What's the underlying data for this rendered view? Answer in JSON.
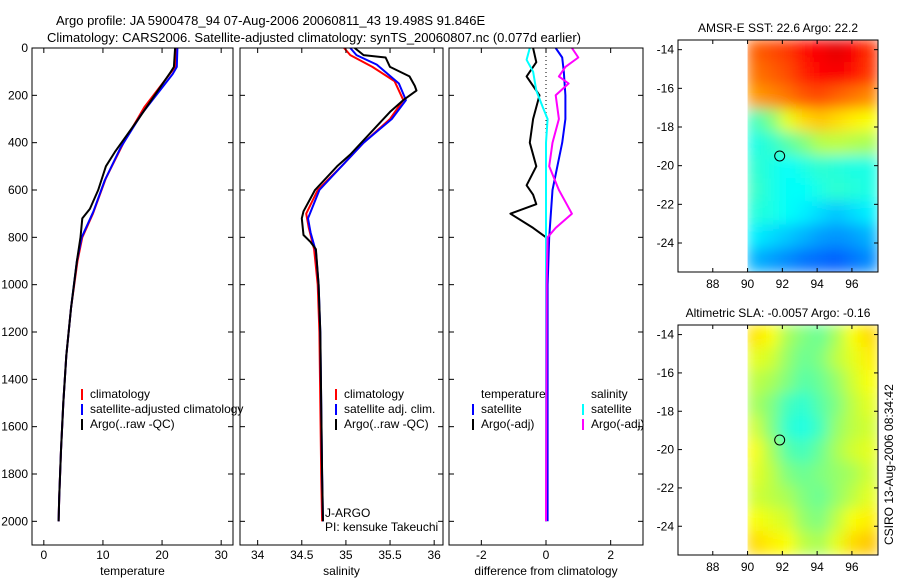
{
  "header": {
    "line1": "Argo profile: JA 5900478_94 07-Aug-2006 20060811_43 19.498S 91.846E",
    "line2": "Climatology: CARS2006. Satellite-adjusted climatology: synTS_20060807.nc (0.077d earlier)"
  },
  "credit": "CSIRO 13-Aug-2006 08:34:42",
  "colors": {
    "red": "#ff0000",
    "blue": "#0000ff",
    "black": "#000000",
    "cyan": "#00ffff",
    "magenta": "#ff00ff"
  },
  "chart_data": [
    {
      "id": "temperature",
      "type": "line",
      "xlabel": "temperature",
      "ylabel": "",
      "xlim": [
        -2,
        32
      ],
      "ylim": [
        2100,
        0
      ],
      "xticks": [
        0,
        10,
        20,
        30
      ],
      "yticks": [
        0,
        200,
        400,
        600,
        800,
        1000,
        1200,
        1400,
        1600,
        1800,
        2000
      ],
      "legend": [
        {
          "label": "climatology",
          "color": "#ff0000"
        },
        {
          "label": "satellite-adjusted climatology",
          "color": "#0000ff"
        },
        {
          "label": "Argo(..raw -QC)",
          "color": "#000000"
        }
      ],
      "series": [
        {
          "name": "climatology",
          "color": "#ff0000",
          "points": [
            [
              22.4,
              0
            ],
            [
              22.2,
              80
            ],
            [
              21.6,
              100
            ],
            [
              17,
              250
            ],
            [
              13.5,
              400
            ],
            [
              10.5,
              550
            ],
            [
              8.3,
              700
            ],
            [
              6.5,
              800
            ],
            [
              5.7,
              900
            ],
            [
              4.6,
              1100
            ],
            [
              3.8,
              1300
            ],
            [
              3.3,
              1500
            ],
            [
              2.9,
              1700
            ],
            [
              2.6,
              1900
            ],
            [
              2.5,
              2000
            ]
          ]
        },
        {
          "name": "satellite-adjusted climatology",
          "color": "#0000ff",
          "points": [
            [
              22.6,
              0
            ],
            [
              22.5,
              80
            ],
            [
              21.8,
              110
            ],
            [
              16.5,
              280
            ],
            [
              13,
              420
            ],
            [
              10.3,
              560
            ],
            [
              8.4,
              690
            ],
            [
              6.4,
              800
            ],
            [
              5.6,
              900
            ],
            [
              4.6,
              1100
            ],
            [
              3.8,
              1300
            ],
            [
              3.3,
              1500
            ],
            [
              2.9,
              1700
            ],
            [
              2.6,
              1900
            ],
            [
              2.5,
              2000
            ]
          ]
        },
        {
          "name": "Argo(..raw -QC)",
          "color": "#000000",
          "points": [
            [
              22.2,
              0
            ],
            [
              22,
              80
            ],
            [
              21.5,
              100
            ],
            [
              16,
              300
            ],
            [
              12,
              440
            ],
            [
              10.5,
              500
            ],
            [
              9.2,
              600
            ],
            [
              7.8,
              680
            ],
            [
              6.5,
              720
            ],
            [
              6.2,
              800
            ],
            [
              5.6,
              900
            ],
            [
              4.6,
              1100
            ],
            [
              3.8,
              1300
            ],
            [
              3.3,
              1500
            ],
            [
              2.9,
              1700
            ],
            [
              2.6,
              1900
            ],
            [
              2.5,
              2000
            ]
          ]
        }
      ]
    },
    {
      "id": "salinity",
      "type": "line",
      "xlabel": "salinity",
      "ylabel": "",
      "xlim": [
        33.8,
        36.1
      ],
      "ylim": [
        2100,
        0
      ],
      "xticks": [
        34,
        34.5,
        35,
        35.5,
        36
      ],
      "yticks": [],
      "legend": [
        {
          "label": "climatology",
          "color": "#ff0000"
        },
        {
          "label": "satellite adj. clim.",
          "color": "#0000ff"
        },
        {
          "label": "Argo(..raw -QC)",
          "color": "#000000"
        }
      ],
      "annotations": [
        "J-ARGO",
        "PI: kensuke Takeuchi"
      ],
      "series": [
        {
          "name": "climatology",
          "color": "#ff0000",
          "points": [
            [
              34.98,
              0
            ],
            [
              35.05,
              30
            ],
            [
              35.3,
              80
            ],
            [
              35.55,
              140
            ],
            [
              35.65,
              220
            ],
            [
              35.5,
              300
            ],
            [
              35.2,
              400
            ],
            [
              34.95,
              500
            ],
            [
              34.68,
              600
            ],
            [
              34.55,
              700
            ],
            [
              34.58,
              760
            ],
            [
              34.64,
              850
            ],
            [
              34.68,
              1000
            ],
            [
              34.7,
              1200
            ],
            [
              34.71,
              1500
            ],
            [
              34.72,
              1800
            ],
            [
              34.73,
              2000
            ]
          ]
        },
        {
          "name": "satellite adj. clim.",
          "color": "#0000ff",
          "points": [
            [
              35.05,
              0
            ],
            [
              35.12,
              30
            ],
            [
              35.35,
              70
            ],
            [
              35.6,
              150
            ],
            [
              35.68,
              220
            ],
            [
              35.52,
              300
            ],
            [
              35.2,
              400
            ],
            [
              34.95,
              500
            ],
            [
              34.7,
              600
            ],
            [
              34.57,
              720
            ],
            [
              34.6,
              780
            ],
            [
              34.66,
              860
            ],
            [
              34.69,
              1000
            ],
            [
              34.71,
              1200
            ],
            [
              34.72,
              1500
            ],
            [
              34.73,
              1800
            ],
            [
              34.74,
              2000
            ]
          ]
        },
        {
          "name": "Argo(..raw -QC)",
          "color": "#000000",
          "points": [
            [
              35.1,
              0
            ],
            [
              35.2,
              30
            ],
            [
              35.45,
              40
            ],
            [
              35.5,
              80
            ],
            [
              35.72,
              120
            ],
            [
              35.78,
              160
            ],
            [
              35.8,
              180
            ],
            [
              35.65,
              220
            ],
            [
              35.5,
              270
            ],
            [
              35.3,
              350
            ],
            [
              35.05,
              450
            ],
            [
              34.9,
              500
            ],
            [
              34.65,
              600
            ],
            [
              34.52,
              690
            ],
            [
              34.5,
              720
            ],
            [
              34.52,
              790
            ],
            [
              34.6,
              820
            ],
            [
              34.66,
              850
            ],
            [
              34.69,
              1000
            ],
            [
              34.71,
              1200
            ],
            [
              34.72,
              1500
            ],
            [
              34.73,
              1800
            ],
            [
              34.74,
              2000
            ]
          ]
        }
      ]
    },
    {
      "id": "difference",
      "type": "line",
      "xlabel": "difference from climatology",
      "ylabel": "",
      "xlim": [
        -3,
        3
      ],
      "ylim": [
        2100,
        0
      ],
      "xticks": [
        -2,
        0,
        2
      ],
      "yticks": [],
      "legend": [
        {
          "label": "temperature",
          "color": ""
        },
        {
          "label": "satellite",
          "color": "#0000ff"
        },
        {
          "label": "Argo(-adj)",
          "color": "#000000"
        },
        {
          "label": "salinity",
          "color": ""
        },
        {
          "label": "satellite",
          "color": "#00ffff"
        },
        {
          "label": "Argo(-adj)",
          "color": "#ff00ff"
        }
      ],
      "series": [
        {
          "name": "temperature satellite",
          "color": "#0000ff",
          "points": [
            [
              0.3,
              0
            ],
            [
              0.5,
              40
            ],
            [
              0.55,
              100
            ],
            [
              0.6,
              200
            ],
            [
              0.6,
              300
            ],
            [
              0.5,
              400
            ],
            [
              0.2,
              600
            ],
            [
              0.1,
              800
            ],
            [
              0.05,
              1000
            ],
            [
              0.05,
              2000
            ]
          ]
        },
        {
          "name": "temperature Argo(-adj)",
          "color": "#000000",
          "points": [
            [
              -0.4,
              0
            ],
            [
              -0.3,
              60
            ],
            [
              -0.6,
              120
            ],
            [
              -0.2,
              200
            ],
            [
              -0.4,
              300
            ],
            [
              -0.5,
              400
            ],
            [
              -0.3,
              500
            ],
            [
              -0.6,
              580
            ],
            [
              -0.4,
              620
            ],
            [
              -0.3,
              660
            ],
            [
              -1.1,
              700
            ],
            [
              -0.4,
              760
            ],
            [
              0,
              800
            ],
            [
              0,
              900
            ],
            [
              0,
              1000
            ],
            [
              0,
              2000
            ]
          ]
        },
        {
          "name": "salinity satellite",
          "color": "#00ffff",
          "points": [
            [
              -0.5,
              0
            ],
            [
              -0.6,
              50
            ],
            [
              -0.4,
              100
            ],
            [
              -0.3,
              180
            ],
            [
              -0.1,
              250
            ],
            [
              0.05,
              300
            ],
            [
              0,
              400
            ],
            [
              0,
              600
            ],
            [
              0,
              800
            ],
            [
              0,
              1000
            ],
            [
              0,
              2000
            ]
          ]
        },
        {
          "name": "salinity Argo(-adj)",
          "color": "#ff00ff",
          "points": [
            [
              0.8,
              0
            ],
            [
              1,
              40
            ],
            [
              0.6,
              80
            ],
            [
              0.4,
              120
            ],
            [
              0.7,
              150
            ],
            [
              0.3,
              200
            ],
            [
              0.4,
              300
            ],
            [
              0.2,
              400
            ],
            [
              0.1,
              500
            ],
            [
              0.4,
              600
            ],
            [
              0.6,
              650
            ],
            [
              0.8,
              700
            ],
            [
              0.3,
              760
            ],
            [
              0.05,
              800
            ],
            [
              0.02,
              1000
            ],
            [
              0,
              2000
            ]
          ]
        }
      ]
    },
    {
      "id": "sst_map",
      "type": "heatmap",
      "title": "AMSR-E SST: 22.6 Argo: 22.2",
      "xlim": [
        86,
        97.5
      ],
      "ylim": [
        -25.5,
        -13.5
      ],
      "xticks": [
        88,
        90,
        92,
        94,
        96
      ],
      "yticks": [
        -14,
        -16,
        -18,
        -20,
        -22,
        -24
      ],
      "data_extent": {
        "lon": [
          90,
          97.5
        ],
        "lat": [
          -25.5,
          -13.5
        ]
      },
      "marker": {
        "lon": 91.846,
        "lat": -19.498
      },
      "colorscheme": "jet",
      "values": [
        [
          0.78,
          0.8,
          0.82,
          0.86,
          0.88,
          0.9,
          0.88,
          0.83
        ],
        [
          0.76,
          0.78,
          0.8,
          0.84,
          0.87,
          0.88,
          0.86,
          0.82
        ],
        [
          0.72,
          0.74,
          0.76,
          0.79,
          0.8,
          0.78,
          0.76,
          0.74
        ],
        [
          0.44,
          0.5,
          0.6,
          0.66,
          0.68,
          0.66,
          0.64,
          0.62
        ],
        [
          0.4,
          0.42,
          0.46,
          0.5,
          0.55,
          0.56,
          0.55,
          0.54
        ],
        [
          0.42,
          0.4,
          0.38,
          0.4,
          0.42,
          0.41,
          0.4,
          0.4
        ],
        [
          0.43,
          0.4,
          0.38,
          0.38,
          0.4,
          0.42,
          0.41,
          0.4
        ],
        [
          0.41,
          0.4,
          0.38,
          0.36,
          0.34,
          0.32,
          0.34,
          0.36
        ],
        [
          0.36,
          0.34,
          0.32,
          0.3,
          0.28,
          0.27,
          0.28,
          0.3
        ],
        [
          0.3,
          0.28,
          0.26,
          0.24,
          0.23,
          0.22,
          0.24,
          0.26
        ]
      ]
    },
    {
      "id": "sla_map",
      "type": "heatmap",
      "title": "Altimetric SLA: -0.0057 Argo: -0.16",
      "xlim": [
        86,
        97.5
      ],
      "ylim": [
        -25.5,
        -13.5
      ],
      "xticks": [
        88,
        90,
        92,
        94,
        96
      ],
      "yticks": [
        -14,
        -16,
        -18,
        -20,
        -22,
        -24
      ],
      "data_extent": {
        "lon": [
          90,
          97.5
        ],
        "lat": [
          -25.5,
          -13.5
        ]
      },
      "marker": {
        "lon": 91.846,
        "lat": -19.498
      },
      "colorscheme": "jet",
      "values": [
        [
          0.65,
          0.62,
          0.54,
          0.5,
          0.48,
          0.54,
          0.62,
          0.66
        ],
        [
          0.6,
          0.58,
          0.52,
          0.48,
          0.5,
          0.56,
          0.6,
          0.64
        ],
        [
          0.56,
          0.54,
          0.5,
          0.46,
          0.48,
          0.52,
          0.58,
          0.62
        ],
        [
          0.54,
          0.5,
          0.44,
          0.42,
          0.46,
          0.5,
          0.56,
          0.6
        ],
        [
          0.58,
          0.5,
          0.42,
          0.4,
          0.44,
          0.52,
          0.56,
          0.58
        ],
        [
          0.62,
          0.54,
          0.46,
          0.44,
          0.48,
          0.54,
          0.58,
          0.6
        ],
        [
          0.6,
          0.56,
          0.5,
          0.48,
          0.5,
          0.52,
          0.54,
          0.58
        ],
        [
          0.58,
          0.56,
          0.54,
          0.5,
          0.48,
          0.52,
          0.56,
          0.6
        ],
        [
          0.62,
          0.6,
          0.58,
          0.52,
          0.5,
          0.56,
          0.62,
          0.64
        ],
        [
          0.66,
          0.64,
          0.62,
          0.56,
          0.54,
          0.6,
          0.66,
          0.68
        ]
      ]
    }
  ]
}
